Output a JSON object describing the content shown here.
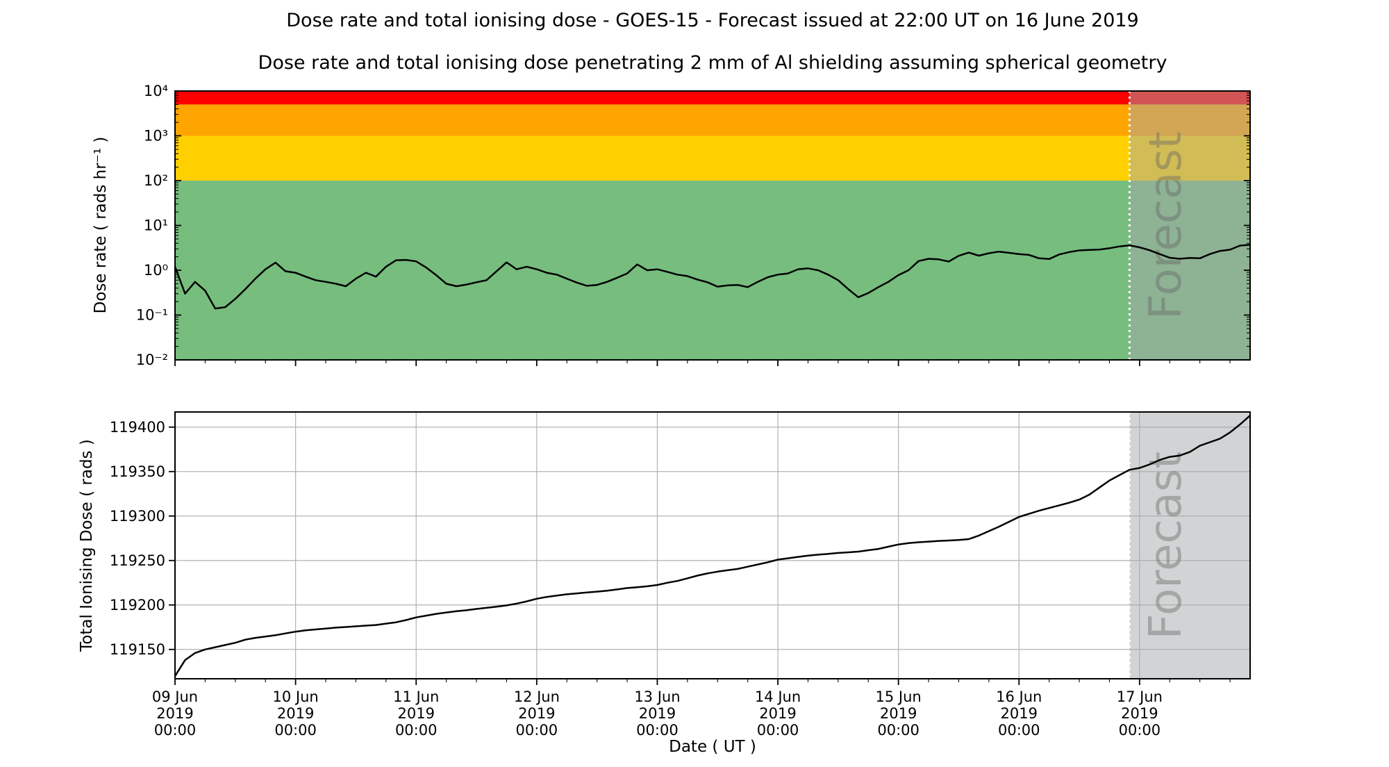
{
  "figure": {
    "title": "Dose rate and total ionising dose - GOES-15 - Forecast issued at 22:00 UT on 16 June 2019",
    "subtitle": "Dose rate and total ionising dose penetrating 2 mm of Al shielding assuming spherical geometry",
    "forecast_label": "Forecast"
  },
  "x_axis": {
    "label": "Date ( UT )",
    "range_hours": [
      0,
      214
    ],
    "minor_tick_interval_hours": 6,
    "major_ticks": [
      {
        "hour": 0,
        "lines": [
          "09 Jun",
          "2019",
          "00:00"
        ]
      },
      {
        "hour": 24,
        "lines": [
          "10 Jun",
          "2019",
          "00:00"
        ]
      },
      {
        "hour": 48,
        "lines": [
          "11 Jun",
          "2019",
          "00:00"
        ]
      },
      {
        "hour": 72,
        "lines": [
          "12 Jun",
          "2019",
          "00:00"
        ]
      },
      {
        "hour": 96,
        "lines": [
          "13 Jun",
          "2019",
          "00:00"
        ]
      },
      {
        "hour": 120,
        "lines": [
          "14 Jun",
          "2019",
          "00:00"
        ]
      },
      {
        "hour": 144,
        "lines": [
          "15 Jun",
          "2019",
          "00:00"
        ]
      },
      {
        "hour": 168,
        "lines": [
          "16 Jun",
          "2019",
          "00:00"
        ]
      },
      {
        "hour": 192,
        "lines": [
          "17 Jun",
          "2019",
          "00:00"
        ]
      }
    ]
  },
  "forecast": {
    "start_hour": 190,
    "overlay_color": "rgba(166,168,170,0.5)",
    "boundary_line_color": "#ffffff",
    "gridline_color": "#b3b3b3"
  },
  "chart_data": [
    {
      "type": "line",
      "panel": "dose-rate",
      "ylabel": "Dose rate ( rads hr⁻¹ )",
      "yscale": "log",
      "ylim": [
        0.01,
        10000
      ],
      "ytick_values": [
        10000,
        1000,
        100,
        10,
        1,
        0.1,
        0.01
      ],
      "ytick_labels": [
        "10⁴",
        "10³",
        "10²",
        "10¹",
        "10⁰",
        "10⁻¹",
        "10⁻²"
      ],
      "line_color": "#000000",
      "bands": [
        {
          "name": "red-alert",
          "from": 5000,
          "to": 10000,
          "color": "#ff0000"
        },
        {
          "name": "orange-warning",
          "from": 1000,
          "to": 5000,
          "color": "#ffa500"
        },
        {
          "name": "yellow-caution",
          "from": 100,
          "to": 1000,
          "color": "#ffd000"
        },
        {
          "name": "green-nominal",
          "from": 0.01,
          "to": 100,
          "color": "#77bd7e"
        }
      ],
      "x_hours": [
        0,
        2,
        4,
        6,
        8,
        10,
        12,
        14,
        16,
        18,
        20,
        22,
        24,
        26,
        28,
        30,
        32,
        34,
        36,
        38,
        40,
        42,
        44,
        46,
        48,
        50,
        52,
        54,
        56,
        58,
        60,
        62,
        64,
        66,
        68,
        70,
        72,
        74,
        76,
        78,
        80,
        82,
        84,
        86,
        88,
        90,
        92,
        94,
        96,
        98,
        100,
        102,
        104,
        106,
        108,
        110,
        112,
        114,
        116,
        118,
        120,
        122,
        124,
        126,
        128,
        130,
        132,
        134,
        136,
        138,
        140,
        142,
        144,
        146,
        148,
        150,
        152,
        154,
        156,
        158,
        160,
        162,
        164,
        166,
        168,
        170,
        172,
        174,
        176,
        178,
        180,
        182,
        184,
        186,
        188,
        190,
        192,
        194,
        196,
        198,
        200,
        202,
        204,
        206,
        208,
        210,
        212,
        214
      ],
      "values": [
        1.2,
        0.3,
        0.55,
        0.35,
        0.14,
        0.15,
        0.23,
        0.38,
        0.65,
        1.05,
        1.48,
        0.95,
        0.88,
        0.72,
        0.6,
        0.55,
        0.5,
        0.44,
        0.65,
        0.88,
        0.72,
        1.2,
        1.67,
        1.7,
        1.58,
        1.15,
        0.78,
        0.5,
        0.44,
        0.48,
        0.54,
        0.6,
        0.95,
        1.5,
        1.05,
        1.2,
        1.05,
        0.88,
        0.8,
        0.65,
        0.53,
        0.45,
        0.47,
        0.55,
        0.68,
        0.85,
        1.35,
        1.0,
        1.05,
        0.92,
        0.8,
        0.74,
        0.62,
        0.54,
        0.43,
        0.46,
        0.47,
        0.42,
        0.55,
        0.7,
        0.8,
        0.85,
        1.05,
        1.1,
        1.0,
        0.8,
        0.6,
        0.38,
        0.25,
        0.31,
        0.42,
        0.55,
        0.78,
        1.0,
        1.6,
        1.8,
        1.75,
        1.56,
        2.1,
        2.48,
        2.12,
        2.4,
        2.6,
        2.45,
        2.3,
        2.2,
        1.85,
        1.78,
        2.25,
        2.55,
        2.78,
        2.85,
        2.9,
        3.1,
        3.4,
        3.6,
        3.25,
        2.8,
        2.3,
        1.9,
        1.8,
        1.88,
        1.85,
        2.3,
        2.7,
        2.88,
        3.55,
        3.7
      ]
    },
    {
      "type": "line",
      "panel": "total-dose",
      "ylabel": "Total Ionising Dose ( rads )",
      "yscale": "linear",
      "ylim": [
        119117,
        119417
      ],
      "ytick_values": [
        119150,
        119200,
        119250,
        119300,
        119350,
        119400
      ],
      "ytick_labels": [
        "119150",
        "119200",
        "119250",
        "119300",
        "119350",
        "119400"
      ],
      "line_color": "#000000",
      "grid": true,
      "x_hours": [
        0,
        2,
        4,
        6,
        8,
        10,
        12,
        14,
        16,
        18,
        20,
        22,
        24,
        26,
        28,
        30,
        32,
        34,
        36,
        38,
        40,
        42,
        44,
        46,
        48,
        50,
        52,
        54,
        56,
        58,
        60,
        62,
        64,
        66,
        68,
        70,
        72,
        74,
        76,
        78,
        80,
        82,
        84,
        86,
        88,
        90,
        92,
        94,
        96,
        98,
        100,
        102,
        104,
        106,
        108,
        110,
        112,
        114,
        116,
        118,
        120,
        122,
        124,
        126,
        128,
        130,
        132,
        134,
        136,
        138,
        140,
        142,
        144,
        146,
        148,
        150,
        152,
        154,
        156,
        158,
        160,
        162,
        164,
        166,
        168,
        170,
        172,
        174,
        176,
        178,
        180,
        182,
        184,
        186,
        188,
        190,
        192,
        194,
        196,
        198,
        200,
        202,
        204,
        206,
        208,
        210,
        212,
        214
      ],
      "values": [
        119120,
        119138,
        119146,
        119150,
        119152.5,
        119155,
        119157.5,
        119161,
        119163,
        119164.5,
        119166,
        119168,
        119170,
        119171.5,
        119172.5,
        119173.5,
        119174.5,
        119175.2,
        119176,
        119176.8,
        119177.5,
        119179,
        119180.5,
        119183,
        119186,
        119188,
        119190,
        119191.5,
        119193,
        119194,
        119195.5,
        119196.8,
        119198,
        119199.5,
        119201.5,
        119204,
        119207,
        119209,
        119210.5,
        119212,
        119213,
        119214,
        119215,
        119216,
        119217.5,
        119219,
        119220,
        119221,
        119222.5,
        119225,
        119227,
        119230,
        119233,
        119235.5,
        119237.5,
        119239,
        119240.5,
        119243,
        119245.5,
        119248,
        119251,
        119252.5,
        119254,
        119255.5,
        119256.5,
        119257.5,
        119258.5,
        119259.2,
        119260,
        119261.5,
        119263,
        119265.5,
        119268,
        119269.5,
        119270.5,
        119271.2,
        119272,
        119272.5,
        119273,
        119274,
        119278,
        119283,
        119288,
        119293.5,
        119299,
        119302.5,
        119306,
        119309,
        119312,
        119315,
        119318.5,
        119324,
        119332,
        119340,
        119346,
        119352,
        119354,
        119358,
        119363,
        119366.5,
        119368,
        119372,
        119379,
        119383,
        119387,
        119394,
        119403,
        119413
      ]
    }
  ]
}
